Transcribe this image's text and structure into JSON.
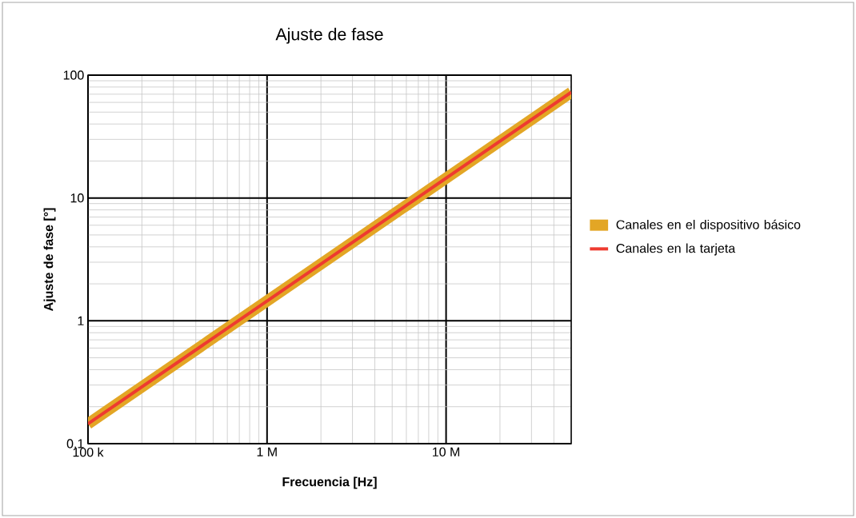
{
  "chart_data": {
    "type": "line",
    "title": "Ajuste de fase",
    "xlabel": "Frecuencia [Hz]",
    "ylabel": "Ajuste de fase [°]",
    "x": [
      100000,
      50000000
    ],
    "series": [
      {
        "name": "Canales en el dispositivo básico",
        "color": "#e3a625",
        "values": [
          0.145,
          72.5
        ]
      },
      {
        "name": "Canales en la tarjeta",
        "color": "#ee3b30",
        "values": [
          0.145,
          72.5
        ]
      }
    ],
    "log": "xy",
    "xlim": [
      100000,
      50000000
    ],
    "ylim": [
      0.1,
      100
    ],
    "xticks": [
      {
        "value": 100000,
        "label": "100 k"
      },
      {
        "value": 1000000,
        "label": "1 M"
      },
      {
        "value": 10000000,
        "label": "10 M"
      }
    ],
    "yticks": [
      {
        "value": 0.1,
        "label": "0.1"
      },
      1,
      10,
      100
    ],
    "grid": true,
    "legend": "right"
  }
}
